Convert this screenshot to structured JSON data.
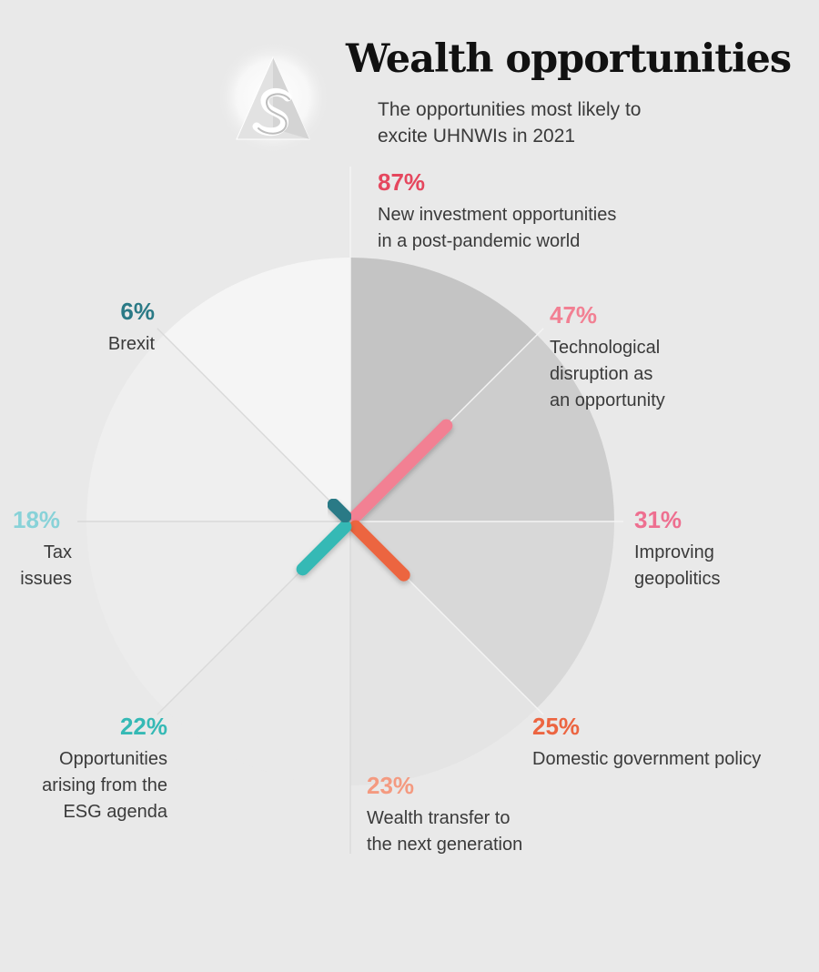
{
  "header": {
    "title": "Wealth opportunities",
    "subtitle": "The opportunities most likely to excite UHNWIs in 2021"
  },
  "logo": {
    "icon": "ascent-s-logo-icon"
  },
  "chart_data": {
    "type": "radial-bar",
    "title": "Wealth opportunities",
    "subtitle": "The opportunities most likely to excite UHNWIs in 2021",
    "unit": "%",
    "categories": [
      "New investment opportunities in a post-pandemic world",
      "Technological disruption as an opportunity",
      "Improving geopolitics",
      "Domestic government policy",
      "Wealth transfer to the next generation",
      "Opportunities arising from the ESG agenda",
      "Tax issues",
      "Brexit"
    ],
    "values": [
      87,
      47,
      31,
      25,
      23,
      22,
      18,
      6
    ],
    "colors": [
      "#e5475e",
      "#f28093",
      "#ee6f90",
      "#ec6541",
      "#f49a80",
      "#35b9b5",
      "#88d2d8",
      "#2a7a86"
    ],
    "labels": [
      {
        "pct": "87%",
        "text": "New investment opportunities\nin a post-pandemic world"
      },
      {
        "pct": "47%",
        "text": "Technological\ndisruption as\nan opportunity"
      },
      {
        "pct": "31%",
        "text": "Improving\ngeopolitics"
      },
      {
        "pct": "25%",
        "text": "Domestic government policy"
      },
      {
        "pct": "23%",
        "text": "Wealth transfer to\nthe next generation"
      },
      {
        "pct": "22%",
        "text": "Opportunities\narising from the\nESG agenda"
      },
      {
        "pct": "18%",
        "text": "Tax\nissues"
      },
      {
        "pct": "6%",
        "text": "Brexit"
      }
    ]
  }
}
